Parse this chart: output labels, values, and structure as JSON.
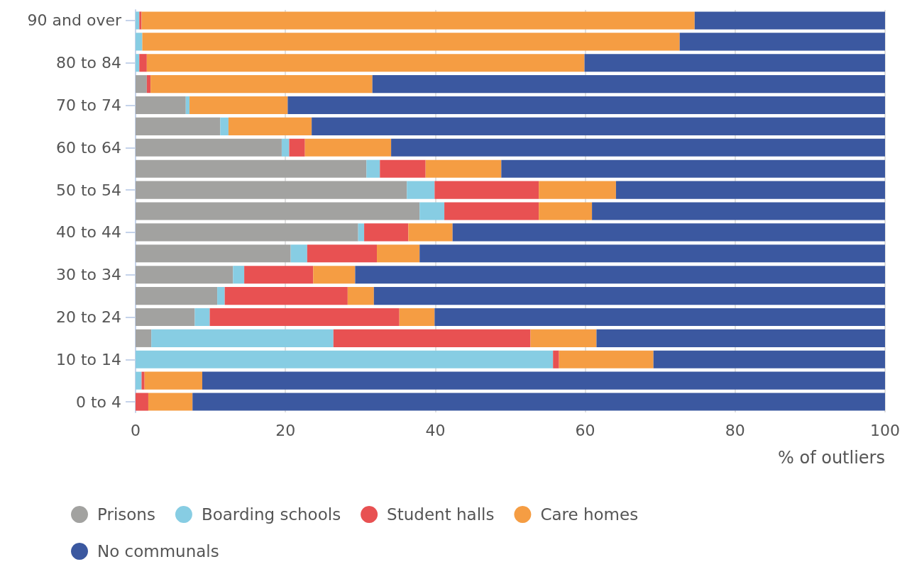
{
  "chart_data": {
    "type": "bar",
    "orientation": "horizontal",
    "stacked": true,
    "xlabel": "% of outliers",
    "categories": [
      "90 and over",
      null,
      "80 to 84",
      null,
      "70 to 74",
      null,
      "60 to 64",
      null,
      "50 to 54",
      null,
      "40 to 44",
      null,
      "30 to 34",
      null,
      "20 to 24",
      null,
      "10 to 14",
      null,
      "0 to 4"
    ],
    "series": [
      {
        "name": "Prisons",
        "color": "#a2a2a0",
        "values": [
          0,
          0,
          0,
          1.5,
          6.7,
          11.3,
          19.5,
          30.8,
          36.2,
          37.9,
          29.7,
          20.7,
          13.0,
          10.9,
          7.9,
          2.1,
          0,
          0,
          0
        ]
      },
      {
        "name": "Boarding schools",
        "color": "#87cde3",
        "values": [
          0.5,
          0.9,
          0.5,
          0,
          0.5,
          1.1,
          1.0,
          1.8,
          3.7,
          3.3,
          0.8,
          2.2,
          1.5,
          1.0,
          2.0,
          24.3,
          55.7,
          0.8,
          0
        ]
      },
      {
        "name": "Student halls",
        "color": "#e85152",
        "values": [
          0.3,
          0,
          1.0,
          0.5,
          0,
          0,
          2.1,
          6.1,
          13.9,
          12.6,
          5.9,
          9.3,
          9.2,
          16.4,
          25.3,
          26.3,
          0.8,
          0.4,
          1.7
        ]
      },
      {
        "name": "Care homes",
        "color": "#f59d43",
        "values": [
          73.8,
          71.7,
          58.4,
          29.6,
          13.1,
          11.1,
          11.5,
          10.1,
          10.3,
          7.1,
          5.9,
          5.7,
          5.6,
          3.5,
          4.7,
          8.8,
          12.6,
          7.7,
          5.9
        ]
      },
      {
        "name": "No communals",
        "color": "#3b58a0",
        "values": [
          25.4,
          27.4,
          40.1,
          68.4,
          79.7,
          76.5,
          65.9,
          51.2,
          35.9,
          39.1,
          57.7,
          62.1,
          70.7,
          68.2,
          60.1,
          38.5,
          30.9,
          91.1,
          92.4
        ]
      }
    ],
    "xlim": [
      0,
      100
    ],
    "xticks": [
      0,
      20,
      40,
      60,
      80,
      100
    ],
    "grid": "x",
    "legend": "bottom"
  }
}
